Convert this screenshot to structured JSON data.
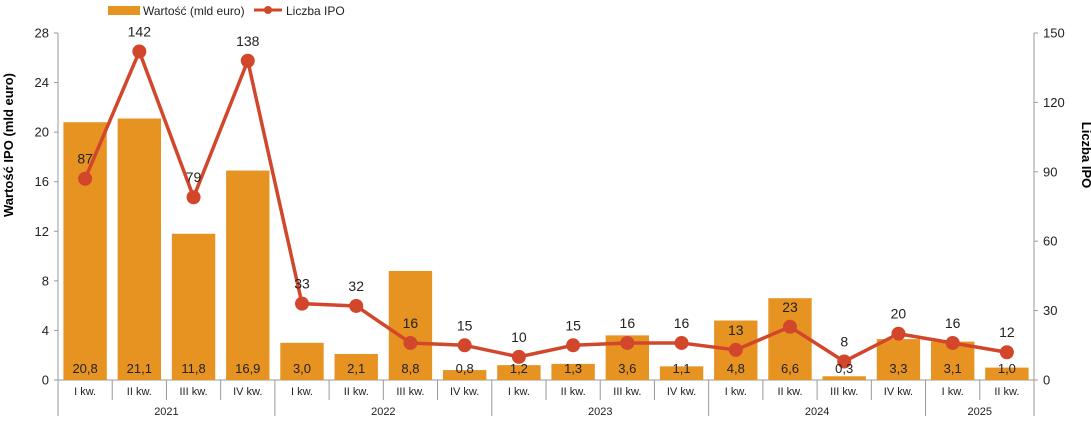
{
  "chart_data": {
    "type": "bar",
    "xlabel": "",
    "ylabel": "Wartość IPO (mld euro)",
    "y2label": "Liczba IPO",
    "ylim": [
      0,
      28
    ],
    "y2lim": [
      0,
      150
    ],
    "yticks": [
      "0",
      "4",
      "8",
      "12",
      "16",
      "20",
      "24",
      "28"
    ],
    "y2ticks": [
      "0",
      "30",
      "60",
      "90",
      "120",
      "150"
    ],
    "grid": false,
    "legend_position": "top-left",
    "categories": [
      "I kw.",
      "II kw.",
      "III kw.",
      "IV kw.",
      "I kw.",
      "II kw.",
      "III kw.",
      "IV kw.",
      "I kw.",
      "II kw.",
      "III kw.",
      "IV kw.",
      "I kw.",
      "II kw.",
      "III kw.",
      "IV kw.",
      "I kw.",
      "II kw."
    ],
    "groups": [
      {
        "label": "2021",
        "count": 4
      },
      {
        "label": "2022",
        "count": 4
      },
      {
        "label": "2023",
        "count": 4
      },
      {
        "label": "2024",
        "count": 4
      },
      {
        "label": "2025",
        "count": 2
      }
    ],
    "series": [
      {
        "name": "Wartość (mld euro)",
        "type": "bar",
        "axis": "left",
        "color": "#E69322",
        "values": [
          20.8,
          21.1,
          11.8,
          16.9,
          3.0,
          2.1,
          8.8,
          0.8,
          1.2,
          1.3,
          3.6,
          1.1,
          4.8,
          6.6,
          0.3,
          3.3,
          3.1,
          1.0
        ],
        "labels": [
          "20,8",
          "21,1",
          "11,8",
          "16,9",
          "3,0",
          "2,1",
          "8,8",
          "0,8",
          "1,2",
          "1,3",
          "3,6",
          "1,1",
          "4,8",
          "6,6",
          "0,3",
          "3,3",
          "3,1",
          "1,0"
        ]
      },
      {
        "name": "Liczba IPO",
        "type": "line",
        "axis": "right",
        "color": "#D2472B",
        "values": [
          87,
          142,
          79,
          138,
          33,
          32,
          16,
          15,
          10,
          15,
          16,
          16,
          13,
          23,
          8,
          20,
          16,
          12
        ],
        "labels": [
          "87",
          "142",
          "79",
          "138",
          "33",
          "32",
          "16",
          "15",
          "10",
          "15",
          "16",
          "16",
          "13",
          "23",
          "8",
          "20",
          "16",
          "12"
        ]
      }
    ]
  }
}
